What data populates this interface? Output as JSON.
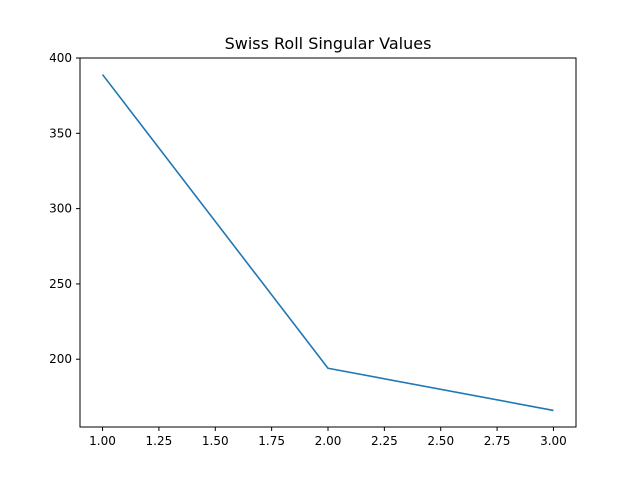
{
  "chart_data": {
    "type": "line",
    "title": "Swiss Roll Singular Values",
    "xlabel": "",
    "ylabel": "",
    "xlim": [
      0.9,
      3.1
    ],
    "ylim": [
      155,
      400
    ],
    "xticks": [
      1.0,
      1.25,
      1.5,
      1.75,
      2.0,
      2.25,
      2.5,
      2.75,
      3.0
    ],
    "xtick_labels": [
      "1.00",
      "1.25",
      "1.50",
      "1.75",
      "2.00",
      "2.25",
      "2.50",
      "2.75",
      "3.00"
    ],
    "yticks": [
      200,
      250,
      300,
      350,
      400
    ],
    "ytick_labels": [
      "200",
      "250",
      "300",
      "350",
      "400"
    ],
    "grid": false,
    "series": [
      {
        "color": "#1f77b4",
        "x": [
          1,
          2,
          3
        ],
        "y": [
          389,
          194,
          166
        ]
      }
    ]
  }
}
